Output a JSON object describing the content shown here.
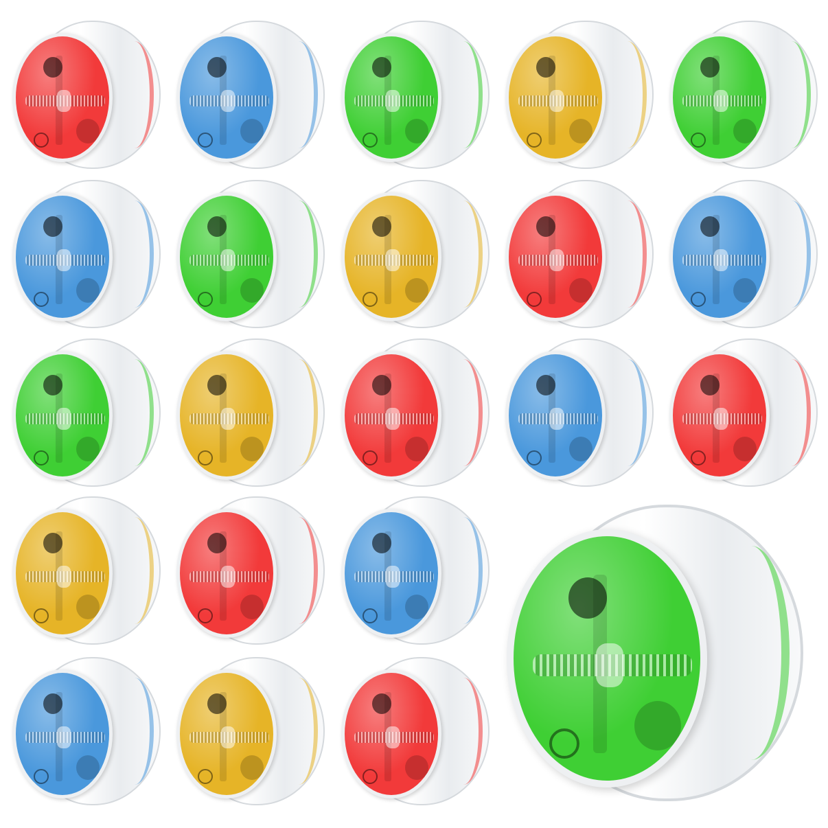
{
  "colors": {
    "red": "#f23a3a",
    "blue": "#4a98dc",
    "green": "#3fcf34",
    "yellow": "#e6b427"
  },
  "grid": [
    [
      "red",
      "blue",
      "green",
      "yellow",
      "green"
    ],
    [
      "blue",
      "green",
      "yellow",
      "red",
      "blue"
    ],
    [
      "green",
      "yellow",
      "red",
      "blue",
      "red"
    ],
    [
      "yellow",
      "red",
      "blue"
    ],
    [
      "blue",
      "yellow",
      "red"
    ]
  ],
  "featured": "green"
}
